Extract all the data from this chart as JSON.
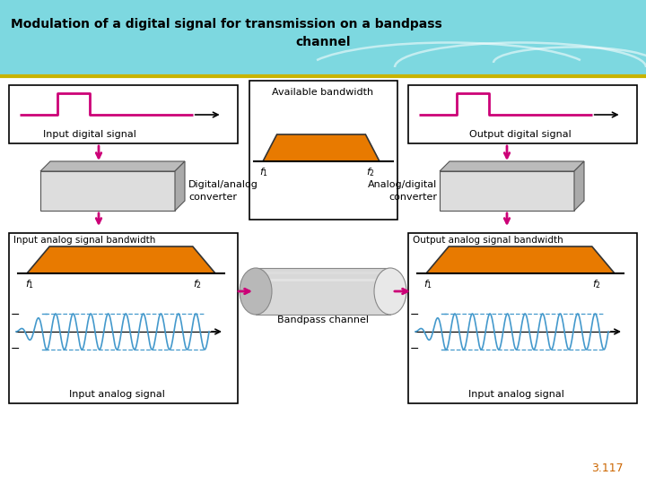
{
  "title_line1": "Modulation of a digital signal for transmission on a bandpass",
  "title_line2": "channel",
  "title_bg_color": "#7dd8e0",
  "title_text_color": "#000000",
  "separator_color": "#c8b400",
  "bg_color": "#ffffff",
  "magenta": "#cc0077",
  "orange": "#e87a00",
  "blue_signal": "#4499cc",
  "page_num": "3.117"
}
